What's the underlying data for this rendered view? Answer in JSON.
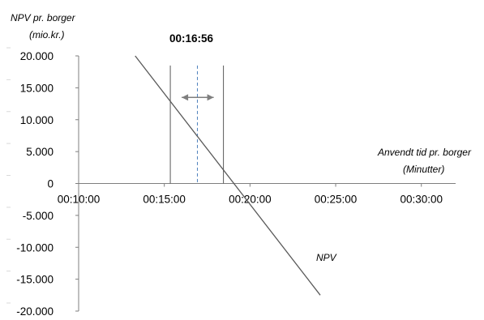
{
  "chart_data": {
    "type": "line",
    "title": "",
    "ylabel_line1": "NPV pr. borger",
    "ylabel_line2": "(mio.kr.)",
    "xlabel_line1": "Anvendt tid pr. borger",
    "xlabel_line2": "(Minutter)",
    "y_ticks": [
      "20.000",
      "15.000",
      "10.000",
      "5.000",
      "0",
      "-5.000",
      "-10.000",
      "-15.000",
      "-20.000"
    ],
    "y_tick_values": [
      20000,
      15000,
      10000,
      5000,
      0,
      -5000,
      -10000,
      -15000,
      -20000
    ],
    "x_ticks": [
      "00:10:00",
      "00:15:00",
      "00:20:00",
      "00:25:00",
      "00:30:00"
    ],
    "x_tick_values": [
      10,
      15,
      20,
      25,
      30
    ],
    "ylim": [
      -20000,
      20000
    ],
    "xlim": [
      10,
      32
    ],
    "series": [
      {
        "name": "NPV",
        "x": [
          13.3,
          24.1
        ],
        "values": [
          20000,
          -17500
        ],
        "color": "#595959"
      }
    ],
    "annotations": {
      "highlight_label": "00:16:56",
      "highlight_x": 16.93,
      "lower_bound_x": 15.35,
      "upper_bound_x": 18.45,
      "range_top": 18500,
      "range_bottom": 0,
      "arrow_y": 13500,
      "series_label": "NPV",
      "series_label_x": 24.2,
      "series_label_y": -11000
    },
    "colors": {
      "axis": "#7f7f7f",
      "series": "#595959",
      "bounds": "#595959",
      "dashed": "#4f81bd",
      "arrow": "#7f7f7f"
    }
  }
}
